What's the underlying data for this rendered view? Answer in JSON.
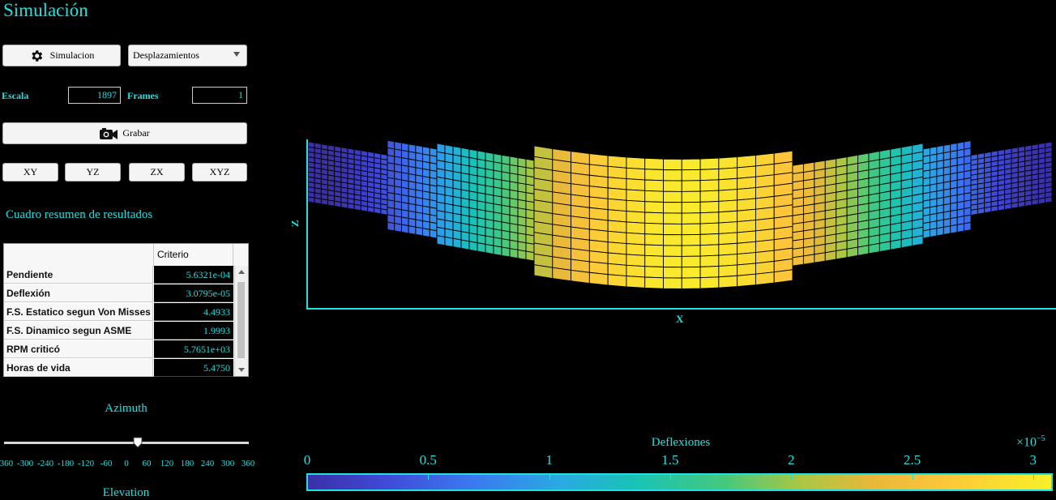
{
  "window": {
    "title": "Simulación"
  },
  "controls": {
    "simulate_label": "Simulacion",
    "result_select": "Desplazamientos",
    "scale_label": "Escala",
    "scale_value": "1897",
    "frames_label": "Frames",
    "frames_value": "1",
    "record_label": "Grabar",
    "views": [
      "XY",
      "YZ",
      "ZX",
      "XYZ"
    ]
  },
  "results": {
    "title": "Cuadro resumen de resultados",
    "column_header": "Criterio",
    "rows": [
      {
        "name": "Pendiente",
        "value": "5.6321e-04"
      },
      {
        "name": "Deflexión",
        "value": "3.0795e-05"
      },
      {
        "name": "F.S. Estatico segun Von Misses",
        "value": "4.4933"
      },
      {
        "name": "F.S. Dinamico segun ASME",
        "value": "1.9993"
      },
      {
        "name": "RPM criticó",
        "value": "5.7651e+03"
      },
      {
        "name": "Horas de vida",
        "value": "5.4750"
      }
    ]
  },
  "azimuth": {
    "label": "Azimuth",
    "value": 0,
    "ticks": [
      "-360",
      "-300",
      "-240",
      "-180",
      "-120",
      "-60",
      "0",
      "60",
      "120",
      "180",
      "240",
      "300",
      "360"
    ]
  },
  "elevation": {
    "label": "Elevation"
  },
  "plot": {
    "x_label": "X",
    "z_label": "Z"
  },
  "colorbar": {
    "label": "Deflexiones",
    "exponent": "×10",
    "exponent_power": "−5",
    "ticks": [
      "0",
      "0.5",
      "1",
      "1.5",
      "2",
      "2.5",
      "3"
    ]
  },
  "colors": {
    "accent": "#20e0e0",
    "background": "#000000"
  }
}
